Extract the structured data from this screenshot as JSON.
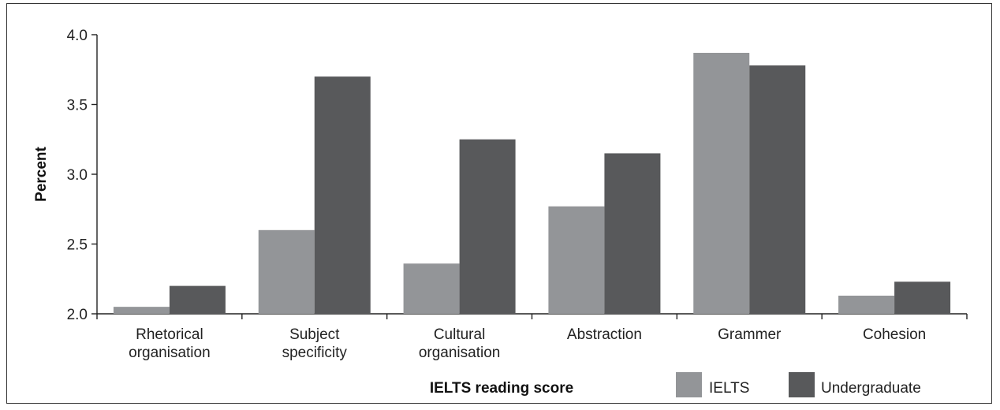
{
  "chart_data": {
    "type": "bar",
    "title": "",
    "xlabel": "IELTS reading score",
    "ylabel": "Percent",
    "ylim": [
      2.0,
      4.0
    ],
    "yticks": [
      "2.0",
      "2.5",
      "3.0",
      "3.5",
      "4.0"
    ],
    "ytick_values": [
      2.0,
      2.5,
      3.0,
      3.5,
      4.0
    ],
    "categories": [
      [
        "Rhetorical",
        "organisation"
      ],
      [
        "Subject",
        "specificity"
      ],
      [
        "Cultural",
        "organisation"
      ],
      [
        "Abstraction"
      ],
      [
        "Grammer"
      ],
      [
        "Cohesion"
      ]
    ],
    "series": [
      {
        "name": "IELTS",
        "color": "#939598",
        "values": [
          2.05,
          2.6,
          2.36,
          2.77,
          3.87,
          2.13
        ]
      },
      {
        "name": "Undergraduate",
        "color": "#58595b",
        "values": [
          2.2,
          3.7,
          3.25,
          3.15,
          3.78,
          2.23
        ]
      }
    ],
    "grid": false,
    "legend_position": "bottom-right"
  }
}
